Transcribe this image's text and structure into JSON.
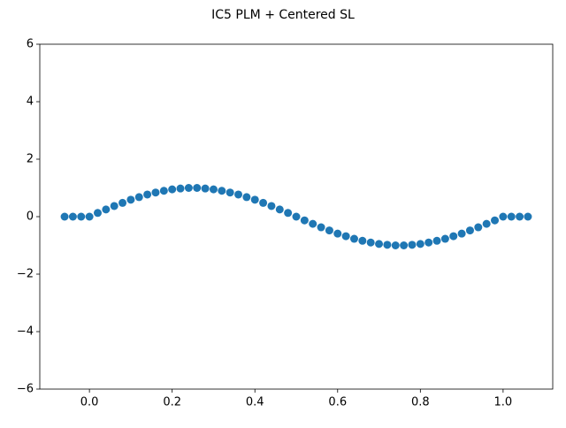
{
  "chart_data": {
    "type": "scatter",
    "title": "IC5 PLM + Centered SL",
    "color": "#1f77b4",
    "x": [
      -0.06,
      -0.04,
      -0.02,
      0,
      0.02,
      0.04,
      0.06,
      0.08,
      0.1,
      0.12,
      0.14,
      0.16,
      0.18,
      0.2,
      0.22,
      0.24,
      0.26,
      0.28,
      0.3,
      0.32,
      0.34,
      0.36,
      0.38,
      0.4,
      0.42,
      0.44,
      0.46,
      0.48,
      0.5,
      0.52,
      0.54,
      0.56,
      0.58,
      0.6,
      0.62,
      0.64,
      0.66,
      0.68,
      0.7,
      0.72,
      0.74,
      0.76,
      0.78,
      0.8,
      0.82,
      0.84,
      0.86,
      0.88,
      0.9,
      0.92,
      0.94,
      0.96,
      0.98,
      1,
      1.02,
      1.04,
      1.06
    ],
    "values": [
      0,
      0,
      0,
      0,
      0.13,
      0.25,
      0.37,
      0.48,
      0.59,
      0.68,
      0.77,
      0.84,
      0.9,
      0.95,
      0.98,
      1,
      1,
      0.98,
      0.95,
      0.9,
      0.84,
      0.77,
      0.68,
      0.59,
      0.48,
      0.37,
      0.25,
      0.13,
      0,
      -0.13,
      -0.25,
      -0.37,
      -0.48,
      -0.59,
      -0.68,
      -0.77,
      -0.84,
      -0.9,
      -0.95,
      -0.98,
      -1,
      -1,
      -0.98,
      -0.95,
      -0.9,
      -0.84,
      -0.77,
      -0.68,
      -0.59,
      -0.48,
      -0.37,
      -0.25,
      -0.13,
      0,
      0,
      0,
      0
    ],
    "xlim": [
      -0.12,
      1.12
    ],
    "xticks": [
      {
        "value": 0,
        "label": "0.0"
      },
      0.2,
      0.4,
      0.6,
      0.8,
      {
        "value": 1,
        "label": "1.0"
      }
    ],
    "ylim": [
      -6,
      6
    ],
    "yticks": [
      {
        "value": -6,
        "label": "−6"
      },
      {
        "value": -4,
        "label": "−4"
      },
      {
        "value": -2,
        "label": "−2"
      },
      0,
      2,
      4,
      6
    ],
    "grid": false
  }
}
